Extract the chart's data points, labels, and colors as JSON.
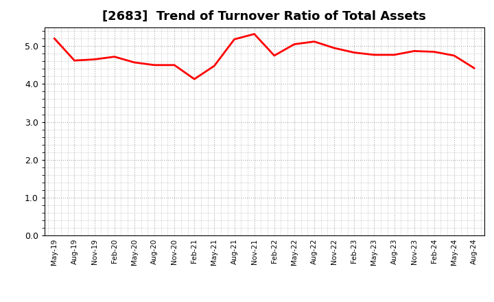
{
  "title": "[2683]  Trend of Turnover Ratio of Total Assets",
  "title_fontsize": 13,
  "line_color": "#FF0000",
  "line_width": 2.0,
  "background_color": "#FFFFFF",
  "grid_color": "#AAAAAA",
  "ylim": [
    0.0,
    5.5
  ],
  "yticks": [
    0.0,
    1.0,
    2.0,
    3.0,
    4.0,
    5.0
  ],
  "x_labels": [
    "May-19",
    "Aug-19",
    "Nov-19",
    "Feb-20",
    "May-20",
    "Aug-20",
    "Nov-20",
    "Feb-21",
    "May-21",
    "Aug-21",
    "Nov-21",
    "Feb-22",
    "May-22",
    "Aug-22",
    "Nov-22",
    "Feb-23",
    "May-23",
    "Aug-23",
    "Nov-23",
    "Feb-24",
    "May-24",
    "Aug-24"
  ],
  "y_values": [
    5.2,
    4.62,
    4.65,
    4.72,
    4.57,
    4.5,
    4.5,
    4.13,
    4.48,
    5.18,
    5.32,
    4.75,
    5.05,
    5.12,
    4.95,
    4.83,
    4.77,
    4.77,
    4.87,
    4.85,
    4.75,
    4.42
  ]
}
